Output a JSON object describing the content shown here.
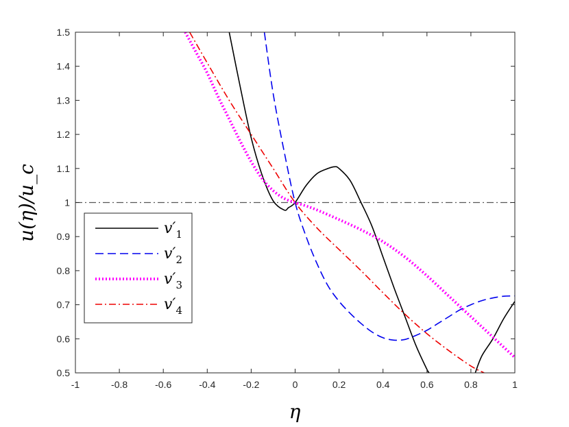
{
  "chart_data": {
    "type": "line",
    "xlabel": "η",
    "ylabel": "u(η)/u_c",
    "xlim": [
      -1,
      1
    ],
    "ylim": [
      0.5,
      1.5
    ],
    "xticks": [
      "-1",
      "-0.8",
      "-0.6",
      "-0.4",
      "-0.2",
      "0",
      "0.2",
      "0.4",
      "0.6",
      "0.8",
      "1"
    ],
    "yticks": [
      "0.5",
      "0.6",
      "0.7",
      "0.8",
      "0.9",
      "1",
      "1.1",
      "1.2",
      "1.3",
      "1.4",
      "1.5"
    ],
    "grid": false,
    "legend_position": "middle-left",
    "reference_line": {
      "y": 1.0,
      "color": "#555555",
      "style": "dash-dot"
    },
    "series": [
      {
        "name": "v′1",
        "label_main": "v′",
        "label_sub": "1",
        "color": "#000000",
        "style": "solid",
        "x": [
          -0.3,
          -0.25,
          -0.2,
          -0.15,
          -0.1,
          -0.05,
          -0.03,
          0,
          0.05,
          0.1,
          0.15,
          0.18,
          0.2,
          0.25,
          0.3,
          0.35,
          0.4,
          0.45,
          0.5,
          0.55,
          0.6,
          0.61,
          0.65,
          0.7,
          0.75,
          0.8,
          0.82,
          0.85,
          0.9,
          0.95,
          1.0
        ],
        "y": [
          1.5,
          1.34,
          1.19,
          1.08,
          1.005,
          0.978,
          0.985,
          1.0,
          1.05,
          1.085,
          1.1,
          1.105,
          1.1,
          1.065,
          1.0,
          0.93,
          0.84,
          0.75,
          0.665,
          0.58,
          0.51,
          0.5,
          0.46,
          0.42,
          0.42,
          0.46,
          0.5,
          0.55,
          0.6,
          0.66,
          0.71
        ]
      },
      {
        "name": "v′2",
        "label_main": "v′",
        "label_sub": "2",
        "color": "#0000ee",
        "style": "dashed",
        "x": [
          -0.14,
          -0.1,
          -0.05,
          0,
          0.05,
          0.1,
          0.15,
          0.2,
          0.25,
          0.3,
          0.35,
          0.4,
          0.45,
          0.5,
          0.55,
          0.6,
          0.65,
          0.7,
          0.75,
          0.8,
          0.85,
          0.9,
          0.95,
          1.0
        ],
        "y": [
          1.5,
          1.32,
          1.15,
          1.0,
          0.9,
          0.82,
          0.755,
          0.71,
          0.675,
          0.645,
          0.62,
          0.603,
          0.596,
          0.598,
          0.61,
          0.625,
          0.645,
          0.665,
          0.685,
          0.7,
          0.712,
          0.72,
          0.725,
          0.726
        ]
      },
      {
        "name": "v′3",
        "label_main": "v′",
        "label_sub": "3",
        "color": "#ff00ff",
        "style": "dotted",
        "x": [
          -0.5,
          -0.45,
          -0.4,
          -0.35,
          -0.3,
          -0.25,
          -0.2,
          -0.15,
          -0.1,
          -0.05,
          0,
          0.05,
          0.1,
          0.2,
          0.3,
          0.4,
          0.5,
          0.6,
          0.7,
          0.8,
          0.9,
          1.0
        ],
        "y": [
          1.5,
          1.44,
          1.38,
          1.31,
          1.245,
          1.18,
          1.12,
          1.07,
          1.035,
          1.012,
          1.0,
          0.99,
          0.978,
          0.95,
          0.92,
          0.885,
          0.84,
          0.785,
          0.725,
          0.665,
          0.605,
          0.545
        ]
      },
      {
        "name": "v′4",
        "label_main": "v′",
        "label_sub": "4",
        "color": "#ee0000",
        "style": "dash-dot",
        "x": [
          -0.48,
          -0.4,
          -0.3,
          -0.2,
          -0.1,
          0,
          0.1,
          0.2,
          0.3,
          0.4,
          0.5,
          0.6,
          0.7,
          0.8,
          0.86
        ],
        "y": [
          1.5,
          1.41,
          1.3,
          1.2,
          1.1,
          1.0,
          0.925,
          0.862,
          0.8,
          0.735,
          0.672,
          0.615,
          0.565,
          0.52,
          0.5
        ]
      }
    ]
  }
}
